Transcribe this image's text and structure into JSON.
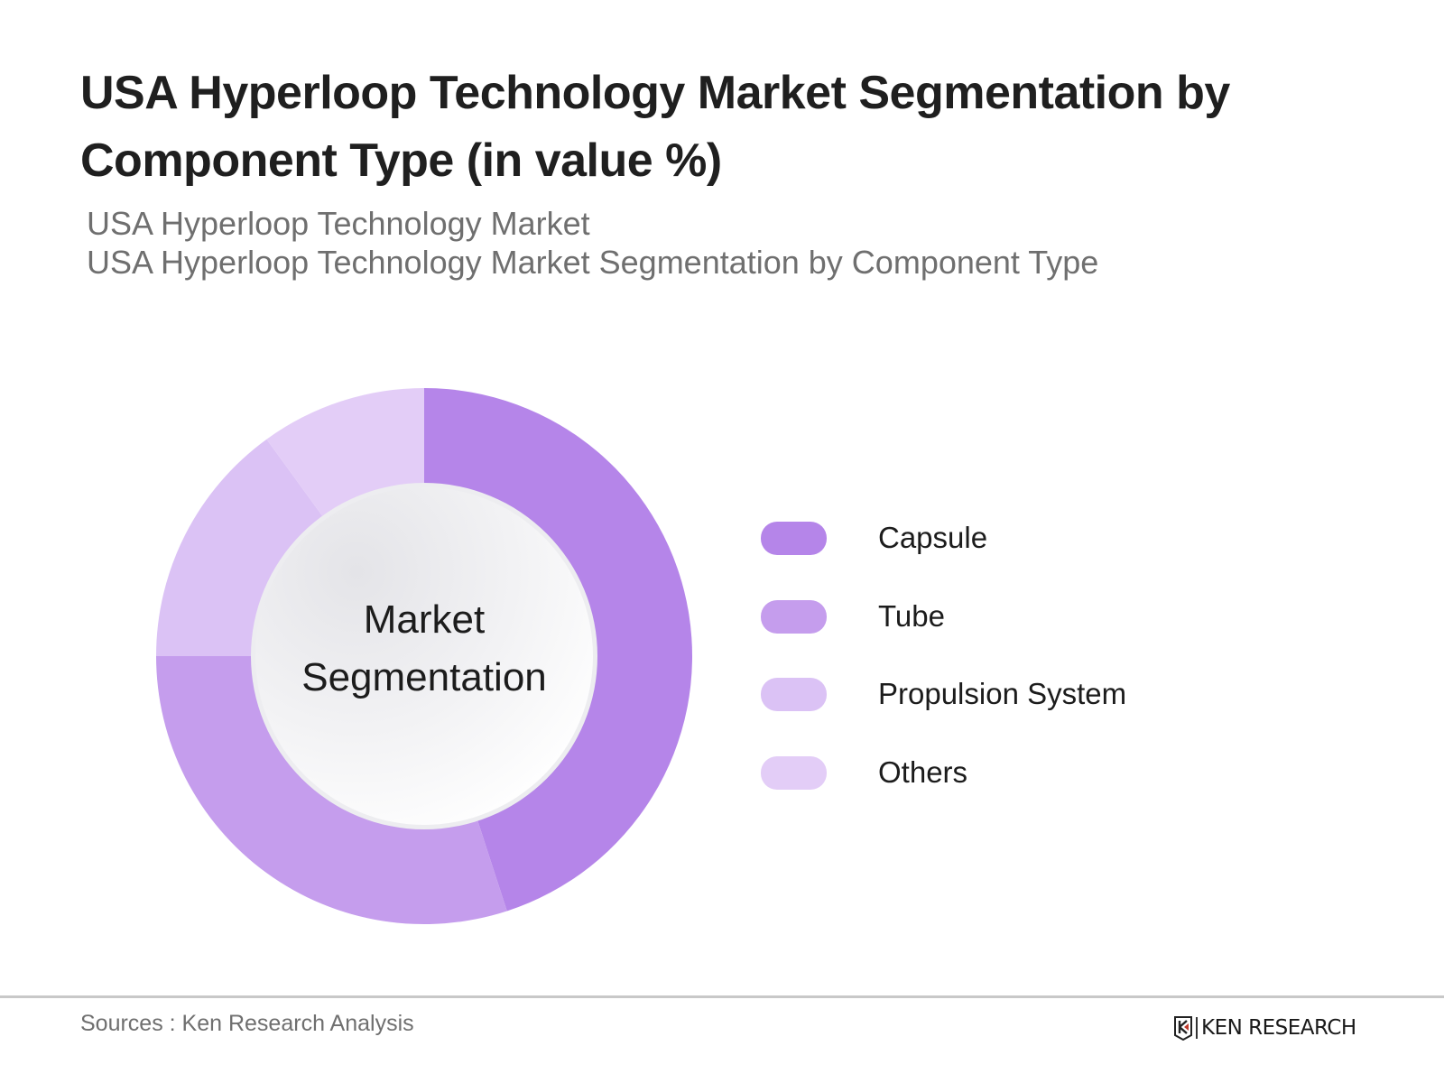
{
  "header": {
    "title": "USA Hyperloop Technology Market Segmentation by Component Type (in value %)",
    "subtitle_line1": "USA Hyperloop Technology Market",
    "subtitle_line2": "USA Hyperloop Technology Market Segmentation by Component Type"
  },
  "center_label": {
    "line1": "Market",
    "line2": "Segmentation"
  },
  "legend": [
    {
      "label": "Capsule",
      "color": "#B585E9"
    },
    {
      "label": "Tube",
      "color": "#C59DED"
    },
    {
      "label": "Propulsion System",
      "color": "#DBC2F5"
    },
    {
      "label": "Others",
      "color": "#E3CDF7"
    }
  ],
  "footer": {
    "source": "Sources : Ken Research Analysis",
    "logo_text": "KEN RESEARCH"
  },
  "chart_data": {
    "type": "pie",
    "variant": "donut",
    "title": "USA Hyperloop Technology Market Segmentation by Component Type (in value %)",
    "categories": [
      "Capsule",
      "Tube",
      "Propulsion System",
      "Others"
    ],
    "values": [
      45,
      30,
      15,
      10
    ],
    "colors": [
      "#B585E9",
      "#C59DED",
      "#DBC2F5",
      "#E3CDF7"
    ],
    "center_text": "Market Segmentation",
    "legend_position": "right",
    "start_angle": "12 o'clock, clockwise"
  }
}
